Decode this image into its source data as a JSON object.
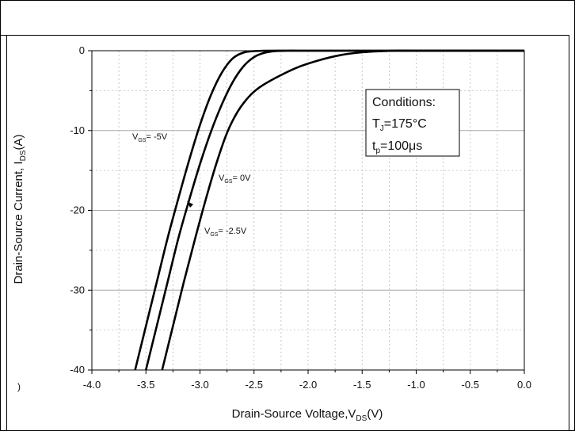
{
  "chart_data": {
    "type": "line",
    "xlabel_main": "Drain-Source Voltage,V",
    "xlabel_sub": "DS",
    "xlabel_tail": "(V)",
    "ylabel_main": "Drain-Source Current, I",
    "ylabel_sub": "DS",
    "ylabel_tail": "(A)",
    "xlim": [
      -4.0,
      0.0
    ],
    "ylim": [
      -40,
      0
    ],
    "x_ticks": [
      "-4.0",
      "-3.5",
      "-3.0",
      "-2.5",
      "-2.0",
      "-1.5",
      "-1.0",
      "-0.5",
      "0.0"
    ],
    "y_ticks": [
      "0",
      "-10",
      "-20",
      "-30",
      "-40"
    ],
    "grid": true,
    "series": [
      {
        "name_main": "V",
        "name_sub": "GS",
        "name_tail": "= -5V",
        "x": [
          -3.6,
          -3.5,
          -3.4,
          -3.3,
          -3.2,
          -3.1,
          -3.0,
          -2.9,
          -2.8,
          -2.7,
          -2.6,
          -2.5,
          -2.4,
          -2.2,
          -2.0,
          -1.5,
          -1.0,
          0.0
        ],
        "y": [
          -40,
          -34.5,
          -29,
          -23.5,
          -18.5,
          -13.7,
          -9.3,
          -5.6,
          -2.8,
          -1.0,
          -0.25,
          -0.05,
          0,
          0,
          0,
          0,
          0,
          0
        ]
      },
      {
        "name_main": "V",
        "name_sub": "GS",
        "name_tail": "= 0V",
        "x": [
          -3.5,
          -3.4,
          -3.3,
          -3.2,
          -3.1,
          -3.0,
          -2.9,
          -2.8,
          -2.7,
          -2.6,
          -2.5,
          -2.4,
          -2.3,
          -2.2,
          -2.1,
          -2.0,
          -1.5,
          -1.0,
          0.0
        ],
        "y": [
          -40,
          -34.5,
          -29,
          -23.5,
          -18.7,
          -14.2,
          -10.2,
          -6.8,
          -4.0,
          -2.0,
          -0.8,
          -0.25,
          -0.05,
          0,
          0,
          0,
          0,
          0,
          0
        ]
      },
      {
        "name_main": "V",
        "name_sub": "GS",
        "name_tail": "= -2.5V",
        "x": [
          -3.35,
          -3.25,
          -3.15,
          -3.05,
          -2.95,
          -2.85,
          -2.75,
          -2.65,
          -2.55,
          -2.45,
          -2.3,
          -2.1,
          -1.9,
          -1.7,
          -1.5,
          -1.3,
          -1.2,
          -1.0,
          0.0
        ],
        "y": [
          -40,
          -34.5,
          -29,
          -23.8,
          -18.8,
          -14.2,
          -10.3,
          -7.6,
          -5.8,
          -4.6,
          -3.4,
          -2.1,
          -1.2,
          -0.55,
          -0.2,
          -0.05,
          0,
          0,
          0
        ]
      }
    ],
    "annotation": {
      "title": "Conditions:",
      "line1_main": "T",
      "line1_sub": "J",
      "line1_tail": "=175°C",
      "line2_main": "t",
      "line2_sub": "p",
      "line2_tail": "=100μs"
    },
    "stray_mark": ")"
  }
}
